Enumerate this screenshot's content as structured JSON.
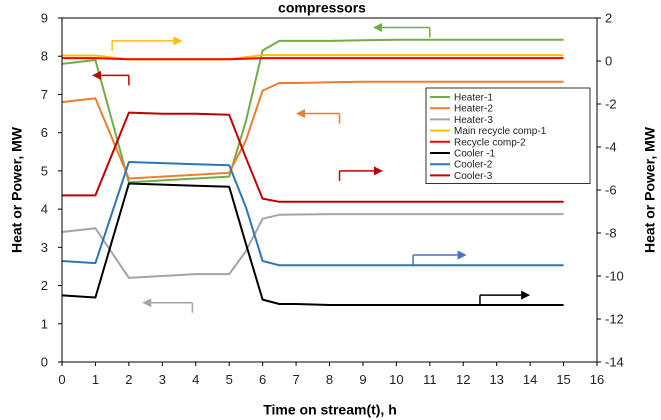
{
  "chart_data": {
    "type": "line",
    "title": "compressors",
    "xlabel": "Time on stream(t), h",
    "ylabel_left": "Heat or Power, MW",
    "ylabel_right": "Heat or Power, MW",
    "xlim": [
      0,
      16
    ],
    "ylim_left": [
      0,
      9
    ],
    "ylim_right": [
      -14,
      2
    ],
    "x_ticks": [
      0,
      1,
      2,
      3,
      4,
      5,
      6,
      7,
      8,
      9,
      10,
      11,
      12,
      13,
      14,
      15,
      16
    ],
    "y_left_ticks": [
      0,
      1,
      2,
      3,
      4,
      5,
      6,
      7,
      8,
      9
    ],
    "y_right_ticks": [
      -14,
      -12,
      -10,
      -8,
      -6,
      -4,
      -2,
      0,
      2
    ],
    "legend_position": "right",
    "grid": false,
    "series": [
      {
        "name": "Heater-1",
        "axis": "left",
        "color": "#70ad47",
        "x": [
          0,
          1,
          2,
          3,
          4,
          5,
          5.5,
          6,
          6.5,
          7,
          8,
          9,
          10,
          11,
          12,
          13,
          14,
          15
        ],
        "y": [
          7.8,
          7.9,
          4.7,
          4.75,
          4.8,
          4.85,
          6.3,
          8.15,
          8.4,
          8.4,
          8.4,
          8.42,
          8.43,
          8.43,
          8.43,
          8.43,
          8.43,
          8.43
        ]
      },
      {
        "name": "Heater-2",
        "axis": "left",
        "color": "#ed7d31",
        "x": [
          0,
          1,
          2,
          3,
          4,
          5,
          5.5,
          6,
          6.5,
          7,
          8,
          9,
          10,
          11,
          12,
          13,
          14,
          15
        ],
        "y": [
          6.8,
          6.9,
          4.8,
          4.85,
          4.9,
          4.95,
          5.8,
          7.1,
          7.3,
          7.3,
          7.32,
          7.33,
          7.33,
          7.33,
          7.33,
          7.33,
          7.33,
          7.33
        ]
      },
      {
        "name": "Heater-3",
        "axis": "left",
        "color": "#a5a5a5",
        "x": [
          0,
          1,
          2,
          3,
          4,
          5,
          5.5,
          6,
          6.5,
          7,
          8,
          9,
          10,
          11,
          12,
          13,
          14,
          15
        ],
        "y": [
          3.4,
          3.5,
          2.2,
          2.25,
          2.3,
          2.3,
          2.9,
          3.75,
          3.85,
          3.86,
          3.87,
          3.87,
          3.87,
          3.87,
          3.87,
          3.87,
          3.87,
          3.87
        ]
      },
      {
        "name": "Main recycle comp-1",
        "axis": "left",
        "color": "#ffc000",
        "x": [
          0,
          1,
          2,
          3,
          4,
          5,
          6,
          7,
          8,
          9,
          10,
          11,
          12,
          13,
          14,
          15
        ],
        "y": [
          8.02,
          8.02,
          7.92,
          7.92,
          7.92,
          7.92,
          8.03,
          8.03,
          8.03,
          8.03,
          8.03,
          8.03,
          8.03,
          8.03,
          8.03,
          8.03
        ]
      },
      {
        "name": "Recycle comp-2",
        "axis": "left",
        "color": "#ff0000",
        "x": [
          0,
          1,
          2,
          3,
          4,
          5,
          6,
          7,
          8,
          9,
          10,
          11,
          12,
          13,
          14,
          15
        ],
        "y": [
          7.95,
          7.95,
          7.92,
          7.92,
          7.92,
          7.92,
          7.95,
          7.95,
          7.95,
          7.95,
          7.95,
          7.95,
          7.95,
          7.95,
          7.95,
          7.95
        ]
      },
      {
        "name": "Cooler -1",
        "axis": "right",
        "color": "#000000",
        "x": [
          0,
          1,
          2,
          3,
          4,
          5,
          5.5,
          6,
          6.5,
          7,
          8,
          9,
          10,
          11,
          12,
          13,
          14,
          15
        ],
        "y": [
          -10.9,
          -11.0,
          -5.7,
          -5.75,
          -5.8,
          -5.85,
          -8.5,
          -11.1,
          -11.3,
          -11.3,
          -11.35,
          -11.35,
          -11.35,
          -11.35,
          -11.35,
          -11.35,
          -11.35,
          -11.35
        ]
      },
      {
        "name": "Cooler-2",
        "axis": "right",
        "color": "#2e75b6",
        "x": [
          0,
          1,
          2,
          3,
          4,
          5,
          5.5,
          6,
          6.5,
          7,
          8,
          9,
          10,
          11,
          12,
          13,
          14,
          15
        ],
        "y": [
          -9.3,
          -9.4,
          -4.7,
          -4.75,
          -4.8,
          -4.85,
          -6.8,
          -9.3,
          -9.5,
          -9.5,
          -9.5,
          -9.5,
          -9.5,
          -9.5,
          -9.5,
          -9.5,
          -9.5,
          -9.5
        ]
      },
      {
        "name": "Cooler-3",
        "axis": "right",
        "color": "#c00000",
        "x": [
          0,
          1,
          2,
          3,
          4,
          5,
          5.5,
          6,
          6.5,
          7,
          8,
          9,
          10,
          11,
          12,
          13,
          14,
          15
        ],
        "y": [
          -6.25,
          -6.25,
          -2.4,
          -2.45,
          -2.45,
          -2.5,
          -4.5,
          -6.4,
          -6.55,
          -6.55,
          -6.55,
          -6.55,
          -6.55,
          -6.55,
          -6.55,
          -6.55,
          -6.55,
          -6.55
        ]
      }
    ],
    "annotations": [
      {
        "type": "arrow",
        "color": "#70ad47",
        "direction": "left",
        "axis": "left",
        "x": [
          11,
          9.3
        ],
        "y": 8.75
      },
      {
        "type": "arrow",
        "color": "#ffc000",
        "direction": "right",
        "axis": "left",
        "x": [
          1.5,
          3.6
        ],
        "y": 8.4
      },
      {
        "type": "arrow",
        "color": "#c00000",
        "direction": "left",
        "axis": "left",
        "x": [
          2.0,
          0.9
        ],
        "y": 7.5
      },
      {
        "type": "arrow",
        "color": "#ed7d31",
        "direction": "left",
        "axis": "left",
        "x": [
          8.3,
          7.0
        ],
        "y": 6.5
      },
      {
        "type": "arrow",
        "color": "#c00000",
        "direction": "right",
        "axis": "left",
        "x": [
          8.3,
          9.6
        ],
        "y": 5.0
      },
      {
        "type": "arrow",
        "color": "#a5a5a5",
        "direction": "left",
        "axis": "left",
        "x": [
          3.9,
          2.4
        ],
        "y": 1.55
      },
      {
        "type": "arrow",
        "color": "#4472c4",
        "direction": "right",
        "axis": "left",
        "x": [
          10.5,
          12.1
        ],
        "y": 2.8
      },
      {
        "type": "arrow",
        "color": "#000000",
        "direction": "right",
        "axis": "left",
        "x": [
          12.5,
          14.0
        ],
        "y": 1.75
      }
    ]
  }
}
